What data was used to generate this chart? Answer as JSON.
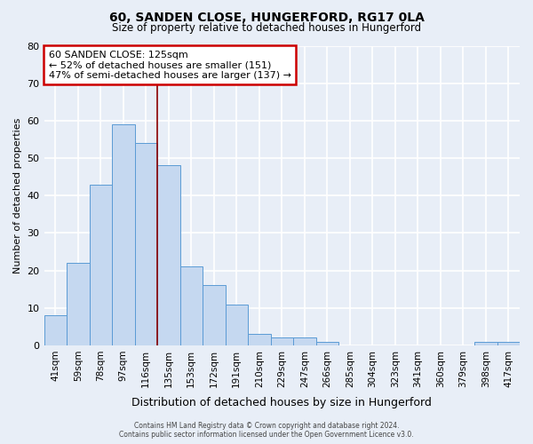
{
  "title1": "60, SANDEN CLOSE, HUNGERFORD, RG17 0LA",
  "title2": "Size of property relative to detached houses in Hungerford",
  "xlabel": "Distribution of detached houses by size in Hungerford",
  "ylabel": "Number of detached properties",
  "bin_labels": [
    "41sqm",
    "59sqm",
    "78sqm",
    "97sqm",
    "116sqm",
    "135sqm",
    "153sqm",
    "172sqm",
    "191sqm",
    "210sqm",
    "229sqm",
    "247sqm",
    "266sqm",
    "285sqm",
    "304sqm",
    "323sqm",
    "341sqm",
    "360sqm",
    "379sqm",
    "398sqm",
    "417sqm"
  ],
  "bar_heights": [
    8,
    22,
    43,
    59,
    54,
    48,
    21,
    16,
    11,
    3,
    2,
    2,
    1,
    0,
    0,
    0,
    0,
    0,
    0,
    1,
    1
  ],
  "bar_color": "#c5d8f0",
  "bar_edge_color": "#5b9bd5",
  "ylim": [
    0,
    80
  ],
  "yticks": [
    0,
    10,
    20,
    30,
    40,
    50,
    60,
    70,
    80
  ],
  "vline_color": "#8b0000",
  "annotation_title": "60 SANDEN CLOSE: 125sqm",
  "annotation_line1": "← 52% of detached houses are smaller (151)",
  "annotation_line2": "47% of semi-detached houses are larger (137) →",
  "annotation_box_color": "#ffffff",
  "annotation_border_color": "#cc0000",
  "background_color": "#e8eef7",
  "grid_color": "#ffffff",
  "footer1": "Contains HM Land Registry data © Crown copyright and database right 2024.",
  "footer2": "Contains public sector information licensed under the Open Government Licence v3.0."
}
